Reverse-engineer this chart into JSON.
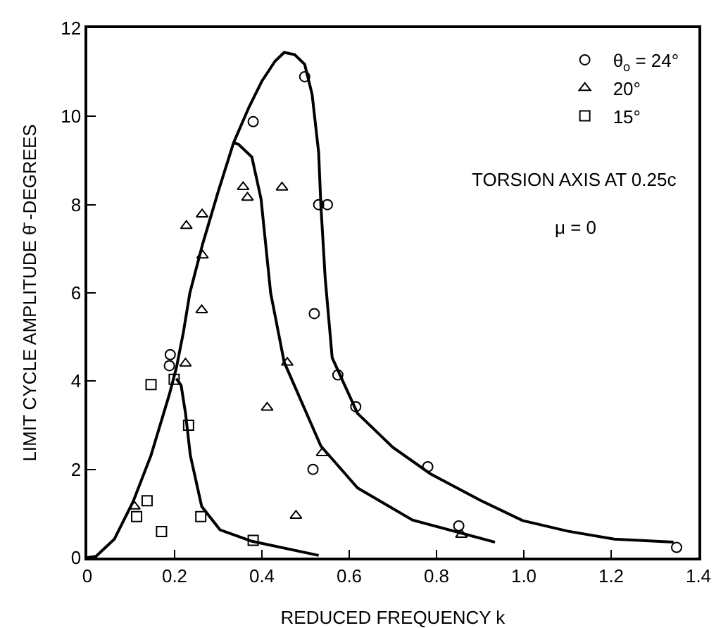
{
  "chart_data": {
    "type": "scatter",
    "xlabel": "REDUCED FREQUENCY k",
    "ylabel": "LIMIT CYCLE AMPLITUDE θ̄ -DEGREES",
    "xlim": [
      0,
      1.4
    ],
    "xticks": [
      0,
      0.2,
      0.4,
      0.6,
      0.8,
      {
        "value": 1.0,
        "label": "1.0"
      },
      1.2,
      1.4
    ],
    "ylim": [
      0,
      12
    ],
    "yticks": [
      0,
      2,
      4,
      6,
      8,
      10,
      12
    ],
    "grid": false,
    "legend": "top right",
    "annotations": [
      "TORSION AXIS AT 0.25c",
      "μ = 0"
    ],
    "series": [
      {
        "name": "θ$_{o}$ = 24°",
        "marker": "circle",
        "color": "#000000",
        "x": [
          0.498,
          0.38,
          0.53,
          0.55,
          0.52,
          0.19,
          0.188,
          0.574,
          0.615,
          0.517,
          0.78,
          0.851,
          1.35
        ],
        "values": [
          10.9,
          9.88,
          8.0,
          8.0,
          5.53,
          4.6,
          4.35,
          4.14,
          3.42,
          2.0,
          2.06,
          0.72,
          0.23
        ]
      },
      {
        "name": "20°",
        "marker": "triangle",
        "color": "#000000",
        "x": [
          0.357,
          0.367,
          0.446,
          0.263,
          0.227,
          0.264,
          0.262,
          0.225,
          0.458,
          0.412,
          0.538,
          0.108,
          0.478,
          0.857
        ],
        "values": [
          8.4,
          8.16,
          8.39,
          7.78,
          7.52,
          6.85,
          5.61,
          4.4,
          4.42,
          3.4,
          2.37,
          1.16,
          0.95,
          0.52
        ]
      },
      {
        "name": "15°",
        "marker": "square",
        "color": "#000000",
        "x": [
          0.146,
          0.199,
          0.232,
          0.137,
          0.113,
          0.17,
          0.26,
          0.38
        ],
        "values": [
          3.92,
          4.04,
          3.0,
          1.29,
          0.93,
          0.59,
          0.93,
          0.39
        ]
      },
      {
        "type": "line",
        "color": "#000000",
        "x": [
          0,
          0.02,
          0.062,
          0.105,
          0.146,
          0.188,
          0.204,
          0.22,
          0.235,
          0.264,
          0.3,
          0.335,
          0.37,
          0.4,
          0.43,
          0.451,
          0.475,
          0.498,
          0.515,
          0.53,
          0.535,
          0.545,
          0.561,
          0.619,
          0.7,
          0.786,
          0.9,
          0.997,
          1.1,
          1.207,
          1.343
        ],
        "values": [
          0,
          0.03,
          0.42,
          1.27,
          2.32,
          3.7,
          4.3,
          5.1,
          6.0,
          7.1,
          8.3,
          9.4,
          10.2,
          10.8,
          11.25,
          11.45,
          11.4,
          11.18,
          10.5,
          9.18,
          8.0,
          6.33,
          4.53,
          3.27,
          2.5,
          1.9,
          1.3,
          0.84,
          0.6,
          0.42,
          0.35
        ]
      },
      {
        "type": "line",
        "color": "#000000",
        "x": [
          0.335,
          0.346,
          0.377,
          0.398,
          0.42,
          0.451,
          0.535,
          0.619,
          0.745,
          0.934
        ],
        "values": [
          9.4,
          9.37,
          9.08,
          8.13,
          6.0,
          4.43,
          2.53,
          1.58,
          0.85,
          0.35
        ]
      },
      {
        "type": "line",
        "color": "#000000",
        "x": [
          0.204,
          0.215,
          0.225,
          0.236,
          0.262,
          0.304,
          0.377,
          0.53
        ],
        "values": [
          4.06,
          3.9,
          3.27,
          2.32,
          1.16,
          0.63,
          0.37,
          0.05
        ]
      }
    ]
  }
}
